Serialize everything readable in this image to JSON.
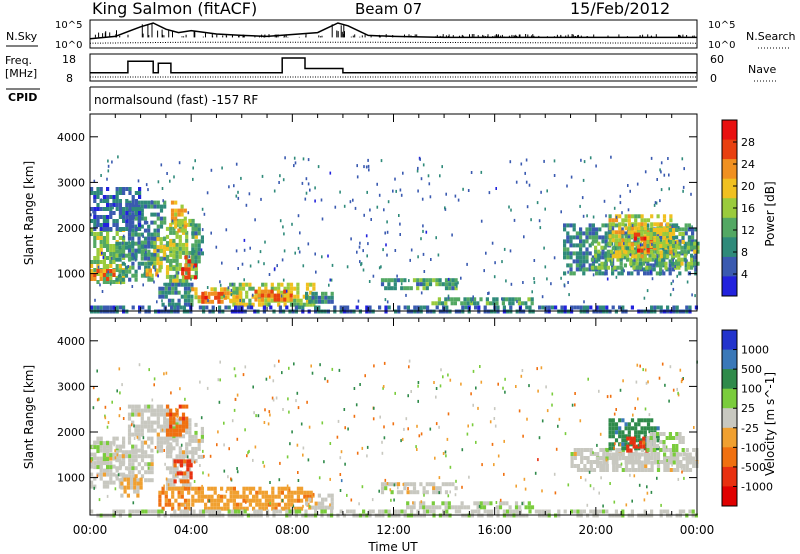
{
  "header": {
    "station": "King Salmon (fitACF)",
    "beam": "Beam 07",
    "date": "15/Feb/2012"
  },
  "small_panels": {
    "nsky_label": "N.Sky",
    "nsky_ticks": [
      "10^5",
      "10^0"
    ],
    "nsearch_label": "N.Search",
    "nsearch_ticks": [
      "10^5",
      "10^0"
    ],
    "freq_label_1": "Freq.",
    "freq_label_2": "[MHz]",
    "freq_ticks": [
      "18",
      "8"
    ],
    "nave_label": "Nave",
    "nave_ticks": [
      "60",
      "0"
    ],
    "cpid_label": "CPID",
    "cpid_text": "normalsound (fast) -157 RF"
  },
  "colors": {
    "power": [
      "#2222dd",
      "#3a5ab0",
      "#2f8a7a",
      "#53a863",
      "#9acb3c",
      "#f0c020",
      "#f09020",
      "#e84010",
      "#e81010"
    ],
    "velocity": [
      "#2233cc",
      "#3a78b8",
      "#2f8a4a",
      "#7acc3c",
      "#c8c8c0",
      "#f0a030",
      "#f07010",
      "#e83010",
      "#e00000"
    ]
  },
  "chart_data": [
    {
      "type": "line",
      "title": "N.Sky / N.Search",
      "x_range": [
        "00:00",
        "24:00"
      ],
      "log_scale": true,
      "series": [
        {
          "name": "N.Sky",
          "style": "solid",
          "values": [
            [
              0,
              1.5
            ],
            [
              1,
              2.0
            ],
            [
              2,
              4.0
            ],
            [
              2.5,
              4.8
            ],
            [
              3,
              3.5
            ],
            [
              3.5,
              2.8
            ],
            [
              4,
              3.2
            ],
            [
              5,
              2.5
            ],
            [
              6,
              2.2
            ],
            [
              7,
              2.0
            ],
            [
              8,
              2.4
            ],
            [
              9,
              2.8
            ],
            [
              9.8,
              4.8
            ],
            [
              10.2,
              4.2
            ],
            [
              11,
              2.2
            ],
            [
              12,
              2.0
            ],
            [
              14,
              1.8
            ],
            [
              16,
              1.8
            ],
            [
              18,
              1.8
            ],
            [
              20,
              1.8
            ],
            [
              22,
              1.8
            ],
            [
              24,
              1.8
            ]
          ]
        },
        {
          "name": "N.Search",
          "style": "dotted",
          "values": [
            [
              0,
              0.8
            ],
            [
              4,
              1.0
            ],
            [
              10,
              1.0
            ],
            [
              24,
              0.8
            ]
          ]
        }
      ]
    },
    {
      "type": "line",
      "title": "Freq. / Nave",
      "x_range": [
        "00:00",
        "24:00"
      ],
      "series": [
        {
          "name": "Freq.",
          "style": "solid",
          "values": [
            [
              0,
              10.5
            ],
            [
              1.5,
              10.5
            ],
            [
              1.5,
              16
            ],
            [
              2.5,
              16
            ],
            [
              2.5,
              10.5
            ],
            [
              2.7,
              10.5
            ],
            [
              2.7,
              15
            ],
            [
              3.2,
              15
            ],
            [
              3.2,
              10.5
            ],
            [
              7.6,
              10.5
            ],
            [
              7.6,
              17.5
            ],
            [
              8.5,
              17.5
            ],
            [
              8.5,
              12.5
            ],
            [
              10,
              12.5
            ],
            [
              10,
              10.5
            ],
            [
              24,
              10.5
            ]
          ]
        },
        {
          "name": "Nave",
          "style": "dotted",
          "values": [
            [
              0,
              8.5
            ],
            [
              24,
              8.5
            ]
          ]
        }
      ]
    },
    {
      "type": "heatmap",
      "title": "",
      "xlabel": "",
      "ylabel": "Slant Range [km]",
      "xlim": [
        0,
        24
      ],
      "ylim": [
        180,
        4500
      ],
      "yticks": [
        "1000",
        "2000",
        "3000",
        "4000"
      ],
      "colorbar_label": "Power [dB]",
      "colorbar_ticks": [
        "4",
        "8",
        "12",
        "16",
        "20",
        "24",
        "28"
      ],
      "colorbar_range": [
        0,
        30
      ],
      "regions": [
        {
          "x0": 0,
          "x1": 1.3,
          "y0": 800,
          "y1": 2000,
          "value": 14
        },
        {
          "x0": 0,
          "x1": 1.0,
          "y0": 850,
          "y1": 1100,
          "value": 22
        },
        {
          "x0": 1.0,
          "x1": 2.5,
          "y0": 900,
          "y1": 1700,
          "value": 10
        },
        {
          "x0": 2.2,
          "x1": 2.9,
          "y0": 1000,
          "y1": 1200,
          "value": 20
        },
        {
          "x0": 1.5,
          "x1": 3.0,
          "y0": 1300,
          "y1": 2600,
          "value": 8
        },
        {
          "x0": 2.5,
          "x1": 3.3,
          "y0": 1100,
          "y1": 1800,
          "value": 16
        },
        {
          "x0": 3.0,
          "x1": 4.2,
          "y0": 800,
          "y1": 2200,
          "value": 14
        },
        {
          "x0": 3.6,
          "x1": 4.2,
          "y0": 900,
          "y1": 1400,
          "value": 26
        },
        {
          "x0": 3.2,
          "x1": 3.8,
          "y0": 1900,
          "y1": 2600,
          "value": 18
        },
        {
          "x0": 0,
          "x1": 2.0,
          "y0": 2000,
          "y1": 2900,
          "value": 6
        },
        {
          "x0": 4.0,
          "x1": 4.5,
          "y0": 1300,
          "y1": 2100,
          "value": 10
        },
        {
          "x0": 2.7,
          "x1": 4.0,
          "y0": 350,
          "y1": 800,
          "value": 8
        },
        {
          "x0": 4.0,
          "x1": 6.0,
          "y0": 350,
          "y1": 700,
          "value": 18
        },
        {
          "x0": 4.4,
          "x1": 5.4,
          "y0": 400,
          "y1": 600,
          "value": 24
        },
        {
          "x0": 5.5,
          "x1": 8.8,
          "y0": 350,
          "y1": 800,
          "value": 16
        },
        {
          "x0": 6.5,
          "x1": 8.0,
          "y0": 450,
          "y1": 650,
          "value": 22
        },
        {
          "x0": 8.5,
          "x1": 9.6,
          "y0": 350,
          "y1": 600,
          "value": 8
        },
        {
          "x0": 11.5,
          "x1": 14.5,
          "y0": 650,
          "y1": 900,
          "value": 10
        },
        {
          "x0": 13.5,
          "x1": 17.5,
          "y0": 350,
          "y1": 480,
          "value": 11
        },
        {
          "x0": 0,
          "x1": 24,
          "y0": 200,
          "y1": 300,
          "value": 6
        },
        {
          "x0": 18.7,
          "x1": 24,
          "y0": 1000,
          "y1": 2100,
          "value": 8
        },
        {
          "x0": 19.8,
          "x1": 24,
          "y0": 1150,
          "y1": 1700,
          "value": 13
        },
        {
          "x0": 20.5,
          "x1": 23.0,
          "y0": 1400,
          "y1": 2300,
          "value": 17
        },
        {
          "x0": 21.5,
          "x1": 22.2,
          "y0": 1500,
          "y1": 1900,
          "value": 26
        },
        {
          "x0": 22.0,
          "x1": 23.5,
          "y0": 1600,
          "y1": 2000,
          "value": 16
        }
      ]
    },
    {
      "type": "heatmap",
      "title": "",
      "xlabel": "Time UT",
      "ylabel": "Slant Range [km]",
      "xlim": [
        0,
        24
      ],
      "ylim": [
        180,
        4500
      ],
      "xticks": [
        "00:00",
        "04:00",
        "08:00",
        "12:00",
        "16:00",
        "20:00",
        "00:00"
      ],
      "yticks": [
        "1000",
        "2000",
        "3000",
        "4000"
      ],
      "colorbar_label": "Velocity [m s^-1]",
      "colorbar_ticks": [
        "1000",
        "500",
        "100",
        "25",
        "-25",
        "-100",
        "-500",
        "-1000"
      ],
      "colorbar_range": [
        -1250,
        1250
      ],
      "regions": [
        {
          "x0": 0,
          "x1": 1.3,
          "y0": 800,
          "y1": 1900,
          "value": 0
        },
        {
          "x0": 0,
          "x1": 0.8,
          "y0": 1200,
          "y1": 1800,
          "value": 150
        },
        {
          "x0": 1.0,
          "x1": 2.5,
          "y0": 900,
          "y1": 1600,
          "value": 0
        },
        {
          "x0": 1.5,
          "x1": 3.2,
          "y0": 1600,
          "y1": 2600,
          "value": 0
        },
        {
          "x0": 1.2,
          "x1": 2.0,
          "y0": 600,
          "y1": 1000,
          "value": -200
        },
        {
          "x0": 3.0,
          "x1": 3.9,
          "y0": 800,
          "y1": 2300,
          "value": 0
        },
        {
          "x0": 3.3,
          "x1": 4.0,
          "y0": 900,
          "y1": 1400,
          "value": -800
        },
        {
          "x0": 3.0,
          "x1": 3.8,
          "y0": 1900,
          "y1": 2600,
          "value": -600
        },
        {
          "x0": 4.0,
          "x1": 4.5,
          "y0": 1400,
          "y1": 2200,
          "value": 0
        },
        {
          "x0": 2.7,
          "x1": 3.9,
          "y0": 350,
          "y1": 800,
          "value": -400
        },
        {
          "x0": 4.0,
          "x1": 8.8,
          "y0": 350,
          "y1": 800,
          "value": -300
        },
        {
          "x0": 8.5,
          "x1": 9.6,
          "y0": 350,
          "y1": 650,
          "value": -50
        },
        {
          "x0": 11.5,
          "x1": 14.5,
          "y0": 650,
          "y1": 900,
          "value": 0
        },
        {
          "x0": 12.5,
          "x1": 17.5,
          "y0": 350,
          "y1": 480,
          "value": 60
        },
        {
          "x0": 0,
          "x1": 24,
          "y0": 200,
          "y1": 300,
          "value": 40
        },
        {
          "x0": 19.0,
          "x1": 24,
          "y0": 1150,
          "y1": 1650,
          "value": 0
        },
        {
          "x0": 20.0,
          "x1": 24,
          "y0": 1300,
          "y1": 1550,
          "value": 10
        },
        {
          "x0": 20.5,
          "x1": 22.5,
          "y0": 1650,
          "y1": 2300,
          "value": 600
        },
        {
          "x0": 21.2,
          "x1": 22.0,
          "y0": 1600,
          "y1": 1900,
          "value": -800
        },
        {
          "x0": 22.0,
          "x1": 23.5,
          "y0": 1600,
          "y1": 2000,
          "value": 150
        }
      ]
    }
  ]
}
